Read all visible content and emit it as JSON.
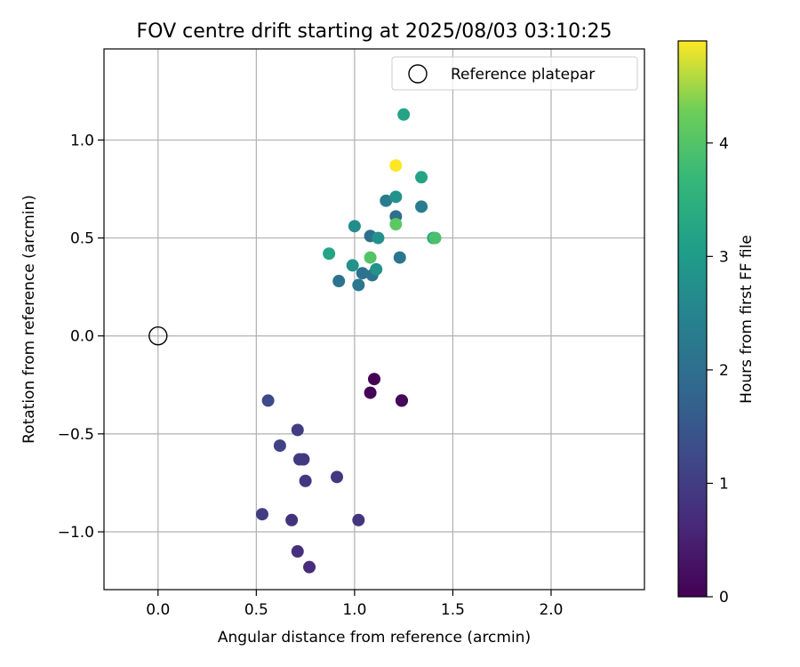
{
  "chart_data": {
    "type": "scatter",
    "title": "FOV centre drift starting at 2025/08/03 03:10:25",
    "xlabel": "Angular distance from reference (arcmin)",
    "ylabel": "Rotation from reference (arcmin)",
    "xlim": [
      -0.275,
      2.475
    ],
    "ylim": [
      -1.295,
      1.465
    ],
    "xticks": [
      0.0,
      0.5,
      1.0,
      1.5,
      2.0
    ],
    "xtick_labels": [
      "0.0",
      "0.5",
      "1.0",
      "1.5",
      "2.0"
    ],
    "yticks": [
      -1.0,
      -0.5,
      0.0,
      0.5,
      1.0
    ],
    "ytick_labels": [
      "−1.0",
      "−0.5",
      "0.0",
      "0.5",
      "1.0"
    ],
    "grid": true,
    "legend": {
      "placement": "top-right",
      "entries": [
        "Reference platepar"
      ]
    },
    "reference": {
      "label": "Reference platepar",
      "x": 0.0,
      "y": 0.0
    },
    "colorbar": {
      "label": "Hours from first FF file",
      "colormap": "viridis",
      "range": [
        0,
        4.9
      ],
      "ticks": [
        0,
        1,
        2,
        3,
        4
      ],
      "tick_labels": [
        "0",
        "1",
        "2",
        "3",
        "4"
      ]
    },
    "points": [
      {
        "x": 1.1,
        "y": -0.22,
        "c": 0.0
      },
      {
        "x": 1.08,
        "y": -0.29,
        "c": 0.05
      },
      {
        "x": 1.24,
        "y": -0.33,
        "c": 0.05
      },
      {
        "x": 1.24,
        "y": -0.33,
        "c": 0.1
      },
      {
        "x": 0.77,
        "y": -1.18,
        "c": 0.7
      },
      {
        "x": 0.71,
        "y": -1.1,
        "c": 0.75
      },
      {
        "x": 0.68,
        "y": -0.94,
        "c": 0.8
      },
      {
        "x": 1.02,
        "y": -0.94,
        "c": 0.85
      },
      {
        "x": 0.53,
        "y": -0.91,
        "c": 1.0
      },
      {
        "x": 0.91,
        "y": -0.72,
        "c": 0.9
      },
      {
        "x": 0.75,
        "y": -0.74,
        "c": 0.9
      },
      {
        "x": 0.72,
        "y": -0.63,
        "c": 0.95
      },
      {
        "x": 0.74,
        "y": -0.63,
        "c": 0.95
      },
      {
        "x": 0.71,
        "y": -0.48,
        "c": 1.0
      },
      {
        "x": 0.62,
        "y": -0.56,
        "c": 1.1
      },
      {
        "x": 0.56,
        "y": -0.33,
        "c": 1.25
      },
      {
        "x": 0.92,
        "y": 0.28,
        "c": 2.1
      },
      {
        "x": 1.02,
        "y": 0.26,
        "c": 2.2
      },
      {
        "x": 1.04,
        "y": 0.32,
        "c": 2.1
      },
      {
        "x": 1.09,
        "y": 0.31,
        "c": 2.1
      },
      {
        "x": 1.08,
        "y": 0.51,
        "c": 2.0
      },
      {
        "x": 1.23,
        "y": 0.4,
        "c": 2.15
      },
      {
        "x": 1.21,
        "y": 0.61,
        "c": 2.0
      },
      {
        "x": 1.16,
        "y": 0.69,
        "c": 2.3
      },
      {
        "x": 1.34,
        "y": 0.66,
        "c": 2.3
      },
      {
        "x": 0.99,
        "y": 0.36,
        "c": 2.8
      },
      {
        "x": 1.11,
        "y": 0.34,
        "c": 2.8
      },
      {
        "x": 1.0,
        "y": 0.56,
        "c": 2.7
      },
      {
        "x": 1.12,
        "y": 0.5,
        "c": 2.8
      },
      {
        "x": 1.21,
        "y": 0.71,
        "c": 2.8
      },
      {
        "x": 0.87,
        "y": 0.42,
        "c": 3.2
      },
      {
        "x": 1.25,
        "y": 1.13,
        "c": 3.2
      },
      {
        "x": 1.34,
        "y": 0.81,
        "c": 3.2
      },
      {
        "x": 1.4,
        "y": 0.5,
        "c": 3.3
      },
      {
        "x": 1.41,
        "y": 0.5,
        "c": 3.9
      },
      {
        "x": 1.08,
        "y": 0.4,
        "c": 4.0
      },
      {
        "x": 1.21,
        "y": 0.57,
        "c": 4.1
      },
      {
        "x": 1.21,
        "y": 0.87,
        "c": 4.9
      }
    ]
  }
}
